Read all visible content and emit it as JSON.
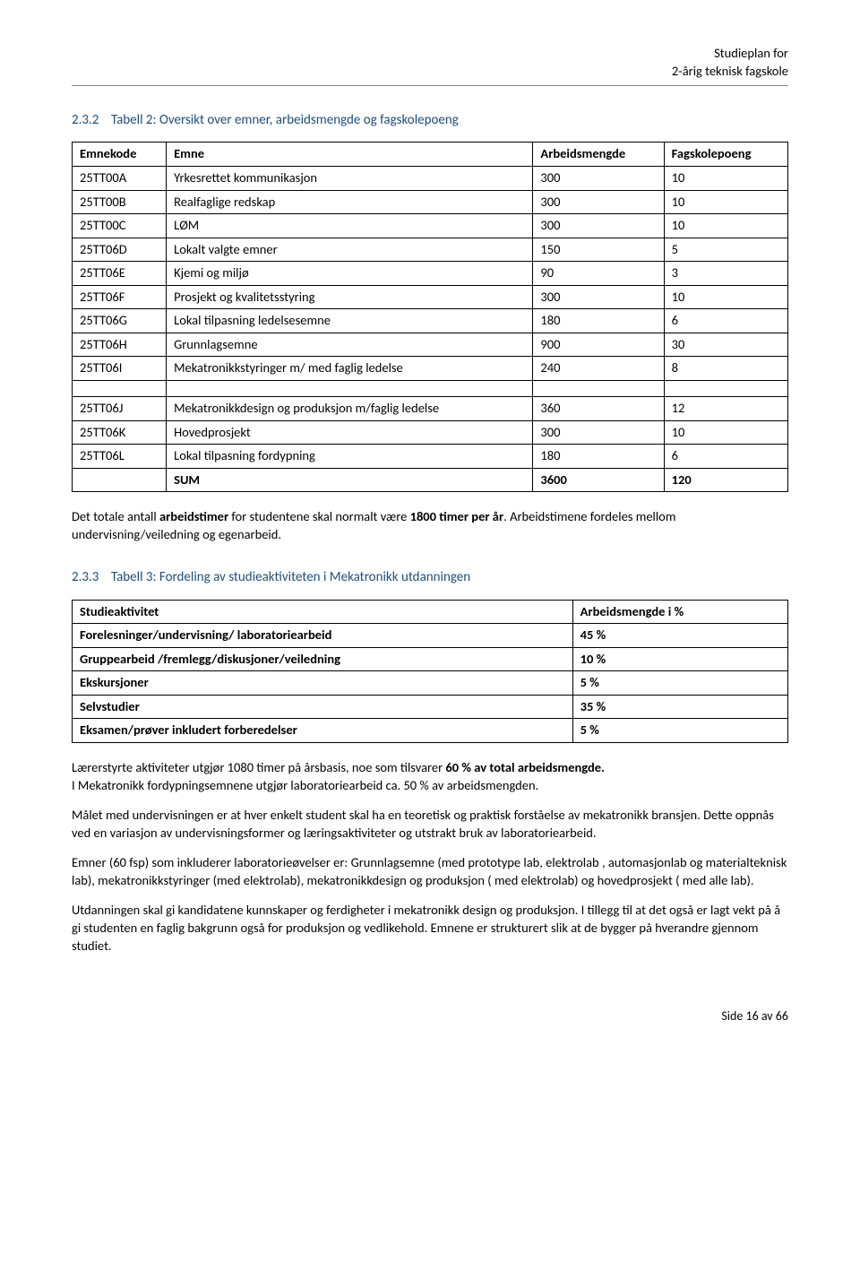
{
  "header": {
    "line1": "Studieplan for",
    "line2": "2-årig teknisk fagskole"
  },
  "section232": {
    "number": "2.3.2",
    "title": "Tabell 2: Oversikt over emner, arbeidsmengde og fagskolepoeng"
  },
  "table2": {
    "columns": [
      "Emnekode",
      "Emne",
      "Arbeidsmengde",
      "Fagskolepoeng"
    ],
    "rowsA": [
      [
        "25TT00A",
        "Yrkesrettet kommunikasjon",
        "300",
        "10"
      ],
      [
        "25TT00B",
        "Realfaglige redskap",
        "300",
        "10"
      ],
      [
        "25TT00C",
        "LØM",
        "300",
        "10"
      ],
      [
        "25TT06D",
        "Lokalt valgte emner",
        "150",
        "5"
      ],
      [
        "25TT06E",
        "Kjemi og miljø",
        "90",
        "3"
      ],
      [
        "25TT06F",
        "Prosjekt og kvalitetsstyring",
        "300",
        "10"
      ],
      [
        "25TT06G",
        "Lokal tilpasning ledelsesemne",
        "180",
        "6"
      ],
      [
        "25TT06H",
        "Grunnlagsemne",
        "900",
        "30"
      ],
      [
        "25TT06I",
        "Mekatronikkstyringer m/ med faglig ledelse",
        "240",
        "8"
      ]
    ],
    "rowsB": [
      [
        "25TT06J",
        "Mekatronikkdesign og produksjon m/faglig ledelse",
        "360",
        "12"
      ],
      [
        "25TT06K",
        "Hovedprosjekt",
        "300",
        "10"
      ],
      [
        "25TT06L",
        "Lokal tilpasning fordypning",
        "180",
        "6"
      ]
    ],
    "sumRow": [
      "",
      "SUM",
      "3600",
      "120"
    ]
  },
  "para_after_t2": "Det totale antall arbeidstimer for studentene skal normalt være 1800 timer per år. Arbeidstimene fordeles mellom undervisning/veiledning og egenarbeid.",
  "para_after_t2_prefix": "Det totale antall ",
  "para_after_t2_bold": "arbeidstimer",
  "para_after_t2_mid": " for studentene skal normalt være ",
  "para_after_t2_bold2": "1800 timer per år",
  "para_after_t2_suffix": ". Arbeidstimene fordeles mellom undervisning/veiledning og egenarbeid.",
  "section233": {
    "number": "2.3.3",
    "title": "Tabell 3: Fordeling av studieaktiviteten i Mekatronikk utdanningen"
  },
  "table3": {
    "columns": [
      "Studieaktivitet",
      "Arbeidsmengde i %"
    ],
    "rows": [
      [
        "Forelesninger/undervisning/ laboratoriearbeid",
        "45 %"
      ],
      [
        "Gruppearbeid /fremlegg/diskusjoner/veiledning",
        "10 %"
      ],
      [
        "Ekskursjoner",
        "5 %"
      ],
      [
        "Selvstudier",
        "35 %"
      ],
      [
        "Eksamen/prøver inkludert forberedelser",
        "5 %"
      ]
    ]
  },
  "para1_pre": "Lærerstyrte aktiviteter utgjør 1080 timer på årsbasis, noe som tilsvarer ",
  "para1_bold": "60 % av total arbeidsmengde.",
  "para1_line2": "I Mekatronikk fordypningsemnene utgjør laboratoriearbeid ca. 50 % av arbeidsmengden.",
  "para2": "Målet med undervisningen er at hver enkelt student skal ha en teoretisk og praktisk forståelse av mekatronikk bransjen. Dette oppnås ved en variasjon av undervisningsformer og læringsaktiviteter og utstrakt bruk av laboratoriearbeid.",
  "para3": "Emner (60 fsp) som inkluderer laboratorieøvelser er: Grunnlagsemne (med prototype lab, elektrolab , automasjonlab og materialteknisk lab), mekatronikkstyringer (med elektrolab), mekatronikkdesign og produksjon ( med elektrolab) og hovedprosjekt ( med alle lab).",
  "para4": "Utdanningen skal gi kandidatene kunnskaper og ferdigheter i mekatronikk design og produksjon. I tillegg til at det også er lagt vekt på å gi studenten en faglig bakgrunn også for produksjon og vedlikehold. Emnene er strukturert slik at de bygger på hverandre gjennom studiet.",
  "footer": "Side 16 av 66"
}
